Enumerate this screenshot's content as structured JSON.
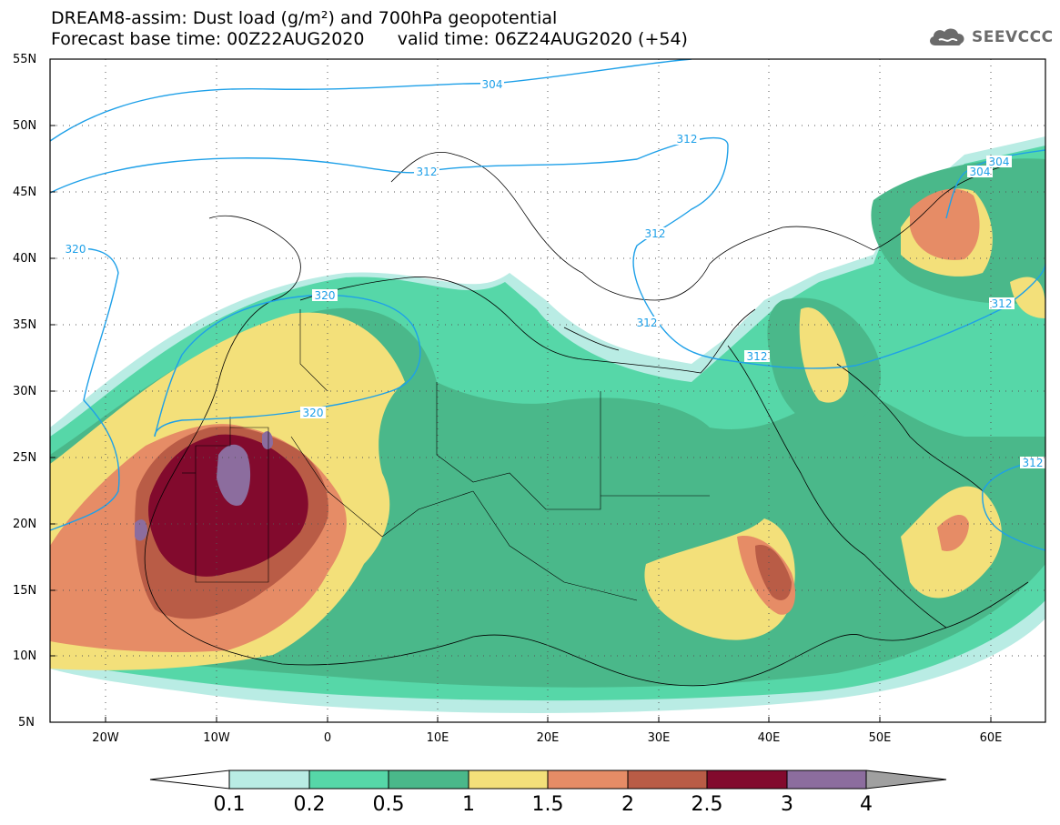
{
  "title": {
    "line1": "DREAM8-assim: Dust load (g/m²) and 700hPa geopotential",
    "line2": "Forecast base time: 00Z22AUG2020      valid time: 06Z24AUG2020 (+54)"
  },
  "logo": {
    "text": "SEEVCCC",
    "icon": "cloud-icon"
  },
  "lat_labels": [
    "55N",
    "50N",
    "45N",
    "40N",
    "35N",
    "30N",
    "25N",
    "20N",
    "15N",
    "10N",
    "5N"
  ],
  "lon_labels": [
    "20W",
    "10W",
    "0",
    "10E",
    "20E",
    "30E",
    "40E",
    "50E",
    "60E"
  ],
  "contour_labels": [
    "304",
    "312",
    "312",
    "312",
    "312",
    "312",
    "320",
    "320",
    "320",
    "304",
    "304",
    "312",
    "312"
  ],
  "colorbar": {
    "ticks": [
      "0.1",
      "0.2",
      "0.5",
      "1",
      "1.5",
      "2",
      "2.5",
      "3",
      "4"
    ],
    "colors": [
      "#ffffff",
      "#b9ece4",
      "#56d7a8",
      "#4ab88a",
      "#f3e07a",
      "#e68c66",
      "#b95c46",
      "#820a2d",
      "#8c6d9e",
      "#a0a0a0"
    ]
  }
}
